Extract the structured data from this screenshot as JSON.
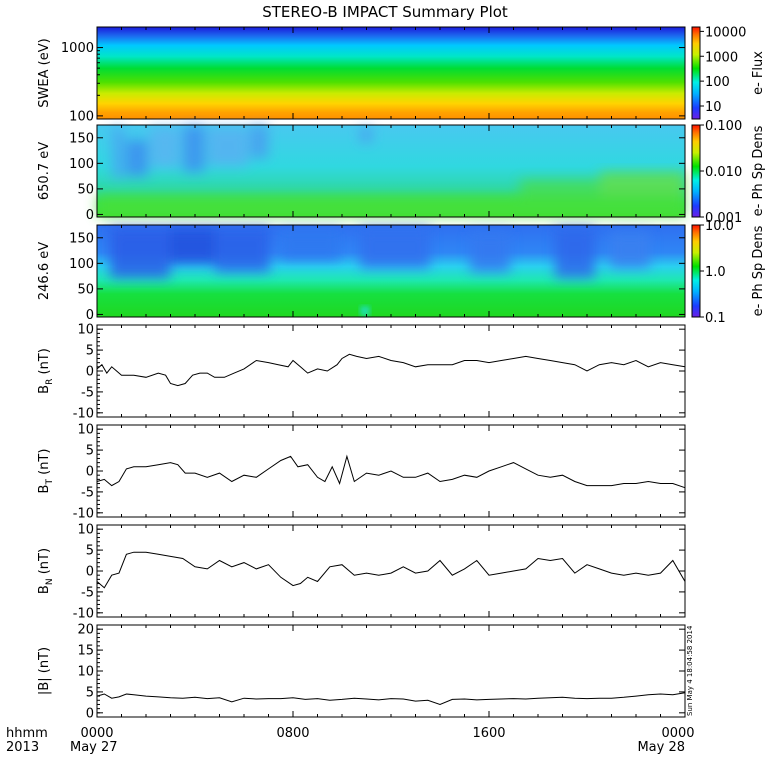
{
  "title": "STEREO-B IMPACT Summary Plot",
  "timestamp": "Sun May  4 18:04:58 2014",
  "time_axis": {
    "row1_labels": [
      "hhmm",
      "0000",
      "0800",
      "1600",
      "0000"
    ],
    "row2_labels": [
      "2013",
      "May 27",
      "May 28"
    ]
  },
  "colors": {
    "trace": "#000000",
    "frame": "#000000"
  },
  "chart_data": [
    {
      "type": "heatmap",
      "ylabel": "SWEA (eV)",
      "yscale": "log",
      "ylim": [
        90,
        2000
      ],
      "yticks": [
        "1000",
        "100"
      ],
      "colorbar": {
        "scale": "log",
        "label": "e- Flux",
        "ticks": [
          "10000",
          "1000",
          "100",
          "10"
        ],
        "range": [
          3,
          15000
        ]
      },
      "xlim": [
        0,
        24
      ]
    },
    {
      "type": "heatmap",
      "ylabel": "650.7 eV",
      "ylim": [
        -5,
        175
      ],
      "yticks": [
        "150",
        "100",
        "50",
        "0"
      ],
      "colorbar": {
        "scale": "log",
        "label": "e- Ph Sp Dens",
        "ticks": [
          "0.100",
          "0.010",
          "0.001"
        ],
        "range": [
          0.001,
          0.1
        ]
      },
      "xlim": [
        0,
        24
      ]
    },
    {
      "type": "heatmap",
      "ylabel": "246.6 eV",
      "ylim": [
        -5,
        175
      ],
      "yticks": [
        "150",
        "100",
        "50",
        "0"
      ],
      "colorbar": {
        "scale": "log",
        "label": "e- Ph Sp Dens",
        "ticks": [
          "10.0",
          "1.0",
          "0.1"
        ],
        "range": [
          0.1,
          10
        ]
      },
      "xlim": [
        0,
        24
      ]
    },
    {
      "type": "line",
      "ylabel_main": "B",
      "ylabel_sub": "R",
      "ylabel_unit": " (nT)",
      "ylim": [
        -11,
        11
      ],
      "yticks": [
        "10",
        "5",
        "0",
        "-5",
        "-10"
      ],
      "xlim": [
        0,
        24
      ],
      "x": [
        0,
        0.2,
        0.4,
        0.6,
        0.8,
        1.0,
        1.5,
        2.0,
        2.5,
        2.8,
        3.0,
        3.3,
        3.6,
        3.9,
        4.2,
        4.5,
        4.8,
        5.2,
        5.6,
        6.0,
        6.5,
        7.0,
        7.4,
        7.8,
        8.0,
        8.3,
        8.6,
        9.0,
        9.4,
        9.8,
        10.0,
        10.3,
        10.6,
        11.0,
        11.5,
        12.0,
        12.5,
        13.0,
        13.5,
        14.0,
        14.5,
        15.0,
        15.5,
        16.0,
        16.5,
        17.0,
        17.5,
        18.0,
        18.5,
        19.0,
        19.5,
        20.0,
        20.5,
        21.0,
        21.5,
        22.0,
        22.5,
        23.0,
        23.5,
        24.0
      ],
      "y": [
        0.5,
        1.5,
        -0.5,
        1.0,
        0.0,
        -1.0,
        -1.0,
        -1.5,
        -0.5,
        -1.0,
        -3.0,
        -3.5,
        -3.0,
        -1.0,
        -0.5,
        -0.5,
        -1.5,
        -1.5,
        -0.5,
        0.5,
        2.5,
        2.0,
        1.5,
        1.0,
        2.5,
        1.0,
        -0.5,
        0.5,
        0.0,
        1.5,
        3.0,
        4.0,
        3.5,
        3.0,
        3.5,
        2.5,
        2.0,
        1.0,
        1.5,
        1.5,
        1.5,
        2.5,
        2.5,
        2.0,
        2.5,
        3.0,
        3.5,
        3.0,
        2.5,
        2.0,
        1.5,
        0.0,
        1.5,
        2.0,
        1.5,
        2.5,
        1.0,
        2.0,
        1.5,
        1.0
      ]
    },
    {
      "type": "line",
      "ylabel_main": "B",
      "ylabel_sub": "T",
      "ylabel_unit": " (nT)",
      "ylim": [
        -11,
        11
      ],
      "yticks": [
        "10",
        "5",
        "0",
        "-5",
        "-10"
      ],
      "xlim": [
        0,
        24
      ],
      "x": [
        0,
        0.3,
        0.6,
        0.9,
        1.2,
        1.5,
        2.0,
        2.5,
        3.0,
        3.3,
        3.6,
        4.0,
        4.5,
        5.0,
        5.5,
        6.0,
        6.5,
        7.0,
        7.5,
        7.9,
        8.2,
        8.6,
        9.0,
        9.3,
        9.6,
        9.9,
        10.2,
        10.5,
        11.0,
        11.5,
        12.0,
        12.5,
        13.0,
        13.5,
        14.0,
        14.5,
        15.0,
        15.5,
        16.0,
        16.5,
        17.0,
        17.5,
        18.0,
        18.5,
        19.0,
        19.5,
        20.0,
        20.5,
        21.0,
        21.5,
        22.0,
        22.5,
        23.0,
        23.5,
        24.0
      ],
      "y": [
        -2.5,
        -2.0,
        -3.5,
        -2.5,
        0.5,
        1.0,
        1.0,
        1.5,
        2.0,
        1.5,
        -0.5,
        -0.5,
        -1.5,
        -0.5,
        -2.5,
        -1.0,
        -1.5,
        0.5,
        2.5,
        3.5,
        1.0,
        1.5,
        -1.5,
        -2.5,
        1.0,
        -3.0,
        3.5,
        -2.5,
        -0.5,
        -1.0,
        0.0,
        -1.5,
        -1.5,
        -0.5,
        -2.5,
        -2.0,
        -1.0,
        -1.5,
        0.0,
        1.0,
        2.0,
        0.5,
        -1.0,
        -1.5,
        -1.0,
        -2.5,
        -3.5,
        -3.5,
        -3.5,
        -3.0,
        -3.0,
        -2.5,
        -3.0,
        -3.0,
        -4.0
      ]
    },
    {
      "type": "line",
      "ylabel_main": "B",
      "ylabel_sub": "N",
      "ylabel_unit": " (nT)",
      "ylim": [
        -11,
        11
      ],
      "yticks": [
        "10",
        "5",
        "0",
        "-5",
        "-10"
      ],
      "xlim": [
        0,
        24
      ],
      "x": [
        0,
        0.3,
        0.6,
        0.9,
        1.2,
        1.5,
        2.0,
        2.5,
        3.0,
        3.5,
        4.0,
        4.5,
        5.0,
        5.5,
        6.0,
        6.5,
        7.0,
        7.5,
        8.0,
        8.3,
        8.6,
        9.0,
        9.5,
        10.0,
        10.5,
        11.0,
        11.5,
        12.0,
        12.5,
        13.0,
        13.5,
        14.0,
        14.5,
        15.0,
        15.5,
        16.0,
        16.5,
        17.0,
        17.5,
        18.0,
        18.5,
        19.0,
        19.5,
        20.0,
        20.5,
        21.0,
        21.5,
        22.0,
        22.5,
        23.0,
        23.5,
        24.0
      ],
      "y": [
        -2.5,
        -4.0,
        -1.0,
        -0.5,
        4.0,
        4.5,
        4.5,
        4.0,
        3.5,
        3.0,
        1.0,
        0.5,
        2.5,
        1.0,
        2.0,
        0.5,
        1.5,
        -1.5,
        -3.5,
        -3.0,
        -1.5,
        -2.5,
        1.0,
        1.5,
        -1.0,
        -0.5,
        -1.0,
        -0.5,
        1.0,
        -0.5,
        0.0,
        2.5,
        -1.0,
        0.5,
        2.5,
        -1.0,
        -0.5,
        0.0,
        0.5,
        3.0,
        2.5,
        3.0,
        -0.5,
        1.5,
        0.5,
        -0.5,
        -1.0,
        -0.5,
        -1.0,
        -0.5,
        2.5,
        -2.5
      ]
    },
    {
      "type": "line",
      "ylabel_main": "|B| (nT)",
      "ylim": [
        -1,
        21
      ],
      "yticks": [
        "20",
        "15",
        "10",
        "5",
        "0"
      ],
      "xlim": [
        0,
        24
      ],
      "x": [
        0,
        0.3,
        0.6,
        0.9,
        1.2,
        1.5,
        2.0,
        2.5,
        3.0,
        3.5,
        4.0,
        4.5,
        5.0,
        5.5,
        6.0,
        6.5,
        7.0,
        7.5,
        8.0,
        8.5,
        9.0,
        9.5,
        10.0,
        10.5,
        11.0,
        11.5,
        12.0,
        12.5,
        13.0,
        13.5,
        14.0,
        14.5,
        15.0,
        15.5,
        16.0,
        16.5,
        17.0,
        17.5,
        18.0,
        18.5,
        19.0,
        19.5,
        20.0,
        20.5,
        21.0,
        21.5,
        22.0,
        22.5,
        23.0,
        23.5,
        24.0
      ],
      "y": [
        4.0,
        4.5,
        3.5,
        3.8,
        4.5,
        4.3,
        4.0,
        3.8,
        3.6,
        3.5,
        3.7,
        3.4,
        3.6,
        2.6,
        3.5,
        3.3,
        3.4,
        3.4,
        3.6,
        3.2,
        3.4,
        3.0,
        3.2,
        3.5,
        3.3,
        3.1,
        3.4,
        3.3,
        2.8,
        3.0,
        2.0,
        3.2,
        3.3,
        3.1,
        3.2,
        3.3,
        3.4,
        3.3,
        3.5,
        3.6,
        3.7,
        3.5,
        3.4,
        3.5,
        3.5,
        3.7,
        4.0,
        4.3,
        4.5,
        4.3,
        4.8
      ]
    }
  ]
}
